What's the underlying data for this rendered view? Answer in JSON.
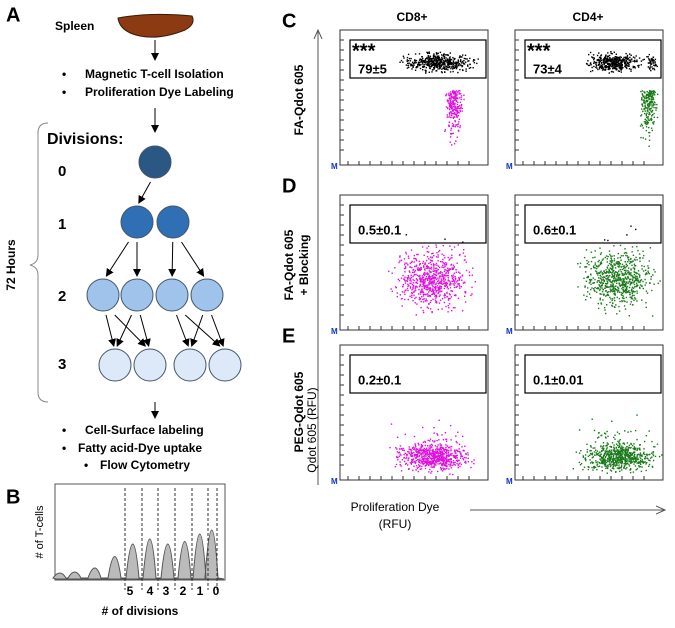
{
  "panel_a": {
    "letter": "A",
    "source": "Spleen",
    "steps_before": [
      "Magnetic T-cell Isolation",
      "Proliferation Dye Labeling"
    ],
    "divisions_label": "Divisions:",
    "division_numbers": [
      "0",
      "1",
      "2",
      "3"
    ],
    "duration": "72 Hours",
    "steps_after": [
      "Cell-Surface labeling",
      "Fatty acid-Dye uptake",
      "Flow Cytometry"
    ]
  },
  "panel_b": {
    "letter": "B",
    "y_label": "# of T-cells",
    "x_label": "# of divisions",
    "division_ticks": [
      "5",
      "4",
      "3",
      "2",
      "1",
      "0"
    ]
  },
  "panel_cde": {
    "columns": [
      "CD8+",
      "CD4+"
    ],
    "rows": [
      {
        "letter": "C",
        "label": [
          "FA-Qdot 605"
        ],
        "stats": [
          {
            "significance": "***",
            "value": "79±5"
          },
          {
            "significance": "***",
            "value": "73±4"
          }
        ]
      },
      {
        "letter": "D",
        "label": [
          "FA-Qdot 605",
          "+ Blocking"
        ],
        "stats": [
          {
            "value": "0.5±0.1"
          },
          {
            "value": "0.6±0.1"
          }
        ]
      },
      {
        "letter": "E",
        "label": [
          "PEG-Qdot 605"
        ],
        "stats": [
          {
            "value": "0.2±0.1"
          },
          {
            "value": "0.1±0.01"
          }
        ]
      }
    ],
    "y_axis": "Qdot 605 (RFU)",
    "x_axis": [
      "Proliferation Dye",
      "(RFU)"
    ],
    "axis_marker": "M"
  }
}
